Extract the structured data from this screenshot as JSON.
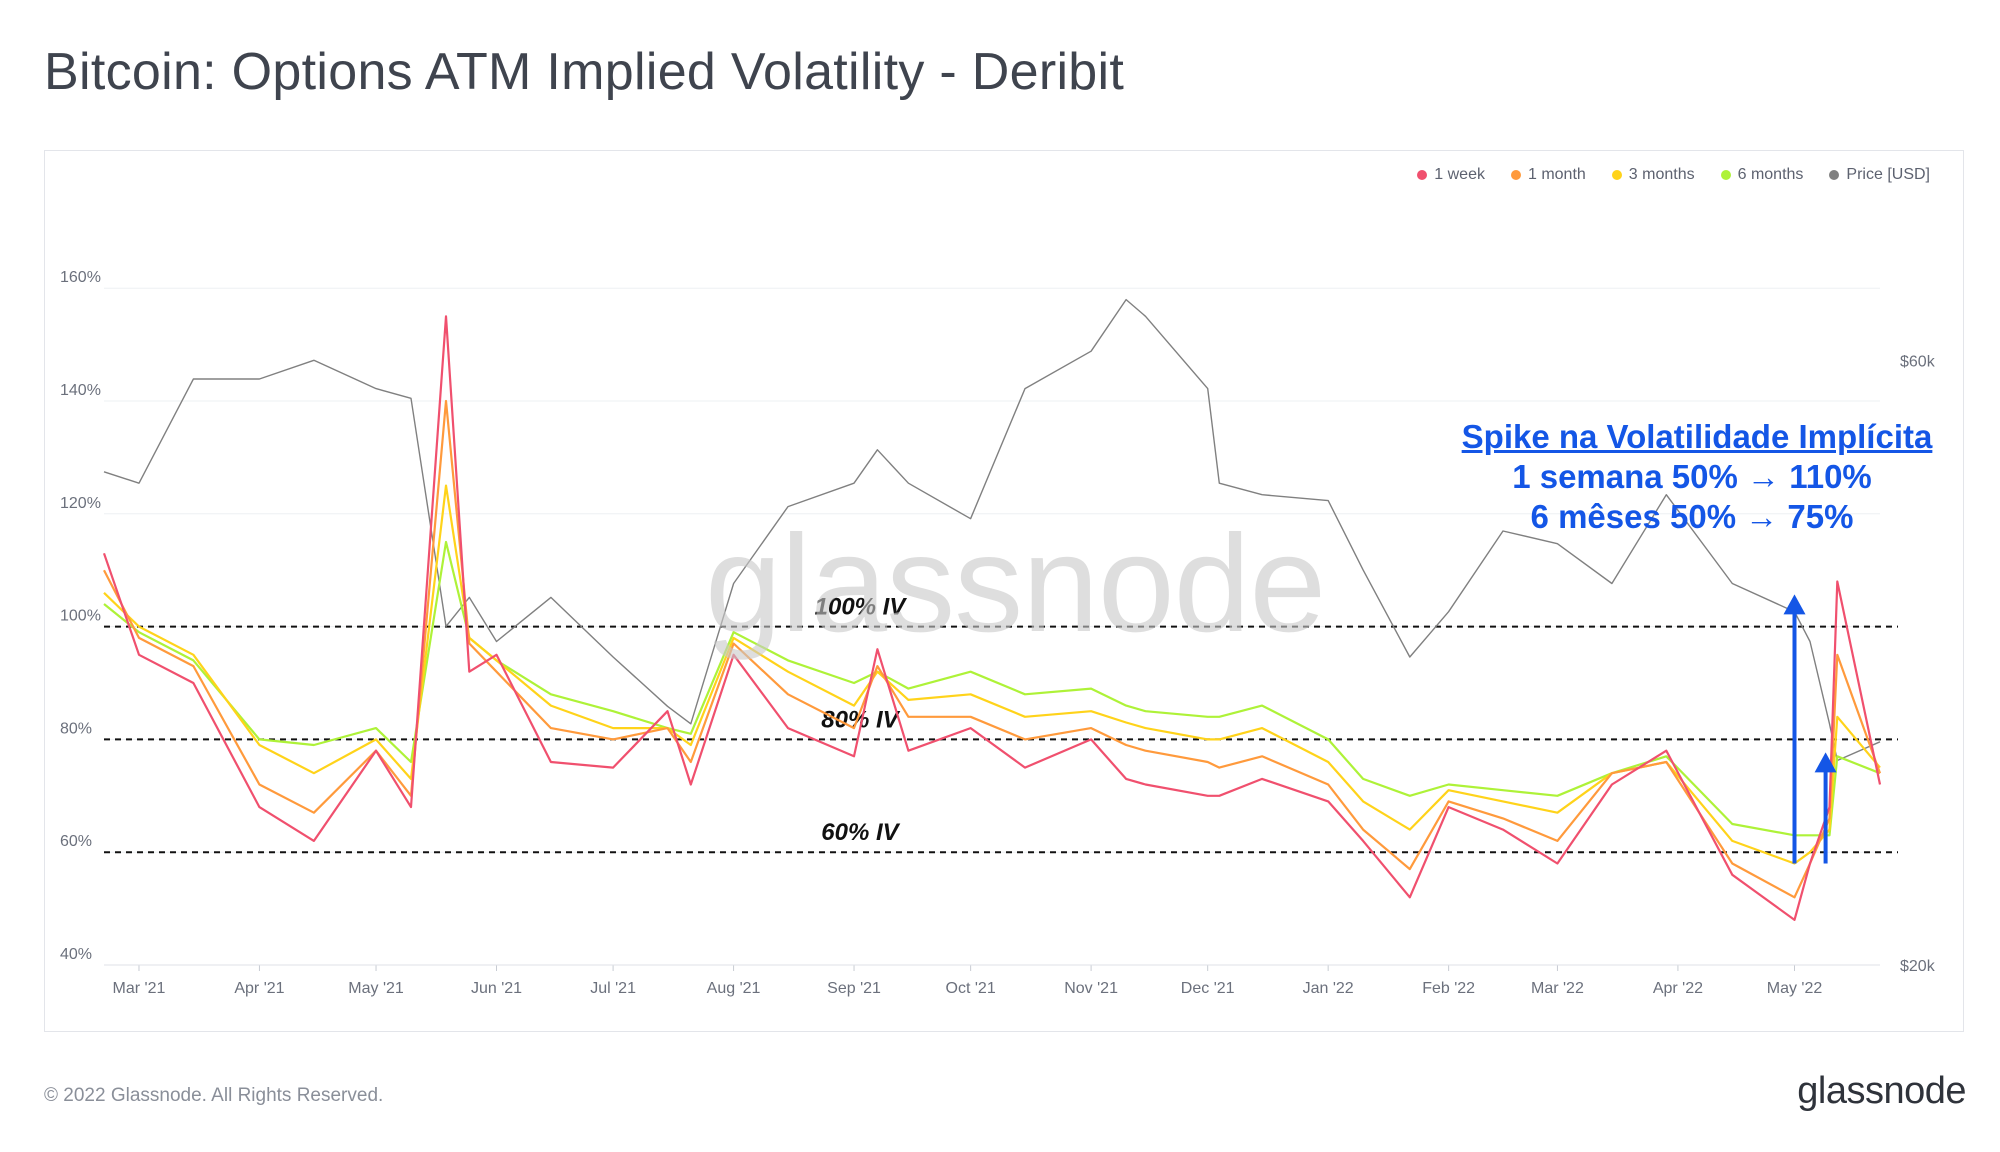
{
  "title": "Bitcoin: Options ATM Implied Volatility - Deribit",
  "footer": {
    "copyright": "© 2022 Glassnode. All Rights Reserved.",
    "logo": "glassnode"
  },
  "watermark": "glassnode",
  "legend": [
    {
      "label": "1 week",
      "color": "#f0506e"
    },
    {
      "label": "1 month",
      "color": "#ff9a3c"
    },
    {
      "label": "3 months",
      "color": "#ffd31a"
    },
    {
      "label": "6 months",
      "color": "#aef238"
    },
    {
      "label": "Price [USD]",
      "color": "#808080"
    }
  ],
  "annotation": {
    "title": "Spike na Volatilidade Implícita",
    "line1": "1 semana 50% → 110%",
    "line2": "6 mêses 50% → 75%",
    "color": "#1456e6"
  },
  "chart_data": {
    "type": "line",
    "x_tick_labels": [
      "Mar '21",
      "Apr '21",
      "May '21",
      "Jun '21",
      "Jul '21",
      "Aug '21",
      "Sep '21",
      "Oct '21",
      "Nov '21",
      "Dec '21",
      "Jan '22",
      "Feb '22",
      "Mar '22",
      "Apr '22",
      "May '22"
    ],
    "x_range": [
      "2021-02-20",
      "2022-05-23"
    ],
    "y_left": {
      "ticks": [
        "40%",
        "60%",
        "80%",
        "100%",
        "120%",
        "140%",
        "160%"
      ],
      "range": [
        40,
        165
      ]
    },
    "y_right": {
      "ticks": [
        "$20k",
        "$60k"
      ],
      "scale": "log",
      "range": [
        20000,
        72000
      ]
    },
    "reference_lines": [
      {
        "value": 100,
        "label": "100% IV"
      },
      {
        "value": 80,
        "label": "80% IV"
      },
      {
        "value": 60,
        "label": "60% IV"
      }
    ],
    "x": [
      "2021-02-20",
      "2021-03-01",
      "2021-03-15",
      "2021-04-01",
      "2021-04-15",
      "2021-05-01",
      "2021-05-10",
      "2021-05-19",
      "2021-05-25",
      "2021-06-01",
      "2021-06-15",
      "2021-07-01",
      "2021-07-15",
      "2021-07-21",
      "2021-08-01",
      "2021-08-15",
      "2021-09-01",
      "2021-09-07",
      "2021-09-15",
      "2021-10-01",
      "2021-10-15",
      "2021-11-01",
      "2021-11-10",
      "2021-11-15",
      "2021-12-01",
      "2021-12-04",
      "2021-12-15",
      "2022-01-01",
      "2022-01-10",
      "2022-01-22",
      "2022-02-01",
      "2022-02-15",
      "2022-03-01",
      "2022-03-15",
      "2022-03-29",
      "2022-04-15",
      "2022-05-01",
      "2022-05-05",
      "2022-05-10",
      "2022-05-12",
      "2022-05-23"
    ],
    "series": [
      {
        "name": "1 week",
        "values": [
          113,
          95,
          90,
          68,
          62,
          78,
          68,
          155,
          92,
          95,
          76,
          75,
          85,
          72,
          95,
          82,
          77,
          96,
          78,
          82,
          75,
          80,
          73,
          72,
          70,
          70,
          73,
          69,
          62,
          52,
          68,
          64,
          58,
          72,
          78,
          56,
          48,
          58,
          68,
          108,
          72
        ]
      },
      {
        "name": "1 month",
        "values": [
          110,
          98,
          93,
          72,
          67,
          78,
          70,
          140,
          97,
          92,
          82,
          80,
          82,
          76,
          97,
          88,
          82,
          93,
          84,
          84,
          80,
          82,
          79,
          78,
          76,
          75,
          77,
          72,
          64,
          57,
          69,
          66,
          62,
          74,
          76,
          58,
          52,
          58,
          66,
          95,
          74
        ]
      },
      {
        "name": "3 months",
        "values": [
          106,
          100,
          95,
          79,
          74,
          80,
          73,
          125,
          98,
          94,
          86,
          82,
          82,
          79,
          98,
          92,
          86,
          92,
          87,
          88,
          84,
          85,
          83,
          82,
          80,
          80,
          82,
          76,
          69,
          64,
          71,
          69,
          67,
          74,
          76,
          62,
          58,
          60,
          64,
          84,
          75
        ]
      },
      {
        "name": "6 months",
        "values": [
          104,
          99,
          94,
          80,
          79,
          82,
          76,
          115,
          98,
          94,
          88,
          85,
          82,
          81,
          99,
          94,
          90,
          92,
          89,
          92,
          88,
          89,
          86,
          85,
          84,
          84,
          86,
          80,
          73,
          70,
          72,
          71,
          70,
          74,
          77,
          65,
          63,
          63,
          63,
          77,
          74
        ]
      },
      {
        "name": "Price [USD]",
        "axis": "right",
        "values": [
          49000,
          48000,
          58000,
          58000,
          60000,
          57000,
          56000,
          37000,
          39000,
          36000,
          39000,
          35000,
          32000,
          31000,
          40000,
          46000,
          48000,
          51000,
          48000,
          45000,
          57000,
          61000,
          67000,
          65000,
          57000,
          48000,
          47000,
          46500,
          41000,
          35000,
          38000,
          44000,
          43000,
          40000,
          47000,
          40000,
          38000,
          36000,
          31000,
          29000,
          30000
        ]
      }
    ]
  }
}
